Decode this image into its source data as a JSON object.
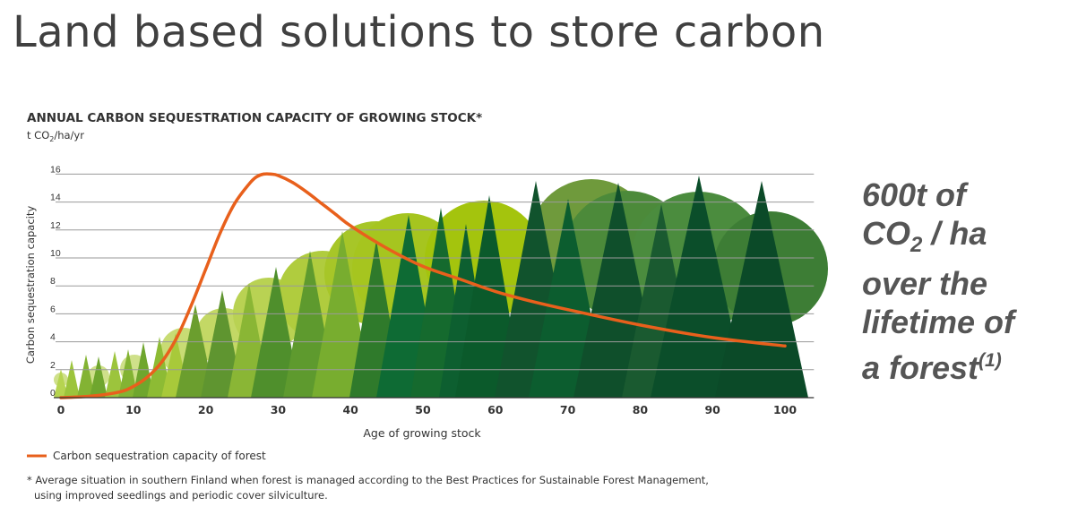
{
  "slide": {
    "title": "Land based solutions to store carbon"
  },
  "side_note": {
    "line1": "600t of",
    "line2_pre": "CO",
    "line2_sub": "2",
    "line2_post": " / ha",
    "line3": "over the",
    "line4": "lifetime of",
    "line5_pre": "a forest",
    "line5_sup": "(1)"
  },
  "colors": {
    "curve": "#e8601c",
    "grid": "#9a9a9a",
    "text": "#333333"
  },
  "chart_data": {
    "type": "line",
    "title": "ANNUAL CARBON SEQUESTRATION CAPACITY OF GROWING STOCK*",
    "unit_pre": "t CO",
    "unit_sub": "2",
    "unit_post": "/ha/yr",
    "xlabel": "Age of growing stock",
    "ylabel": "Carbon sequestration capacity",
    "xlim": [
      0,
      104
    ],
    "ylim": [
      0,
      16
    ],
    "x_ticks": [
      0,
      10,
      20,
      30,
      40,
      50,
      60,
      70,
      80,
      90,
      100
    ],
    "y_ticks": [
      0,
      2,
      4,
      6,
      8,
      10,
      12,
      14,
      16
    ],
    "grid": true,
    "legend_position": "bottom-left",
    "series": [
      {
        "name": "Carbon sequestration capacity of forest",
        "x": [
          0,
          4,
          8,
          10,
          12,
          14,
          16,
          18,
          20,
          22,
          24,
          26,
          27,
          28,
          29,
          30,
          32,
          34,
          36,
          38,
          40,
          45,
          50,
          55,
          60,
          65,
          70,
          80,
          90,
          100
        ],
        "y": [
          0,
          0.1,
          0.4,
          0.8,
          1.5,
          2.6,
          4.3,
          6.6,
          9.2,
          11.8,
          13.9,
          15.3,
          15.8,
          16.0,
          16.0,
          15.9,
          15.4,
          14.7,
          13.9,
          13.1,
          12.3,
          10.7,
          9.4,
          8.5,
          7.6,
          6.9,
          6.3,
          5.2,
          4.3,
          3.7
        ]
      }
    ],
    "footnote_line1": "* Average situation in southern Finland when forest is managed according to the Best Practices for Sustainable Forest Management,",
    "footnote_line2": "using improved seedlings and periodic cover silviculture."
  }
}
